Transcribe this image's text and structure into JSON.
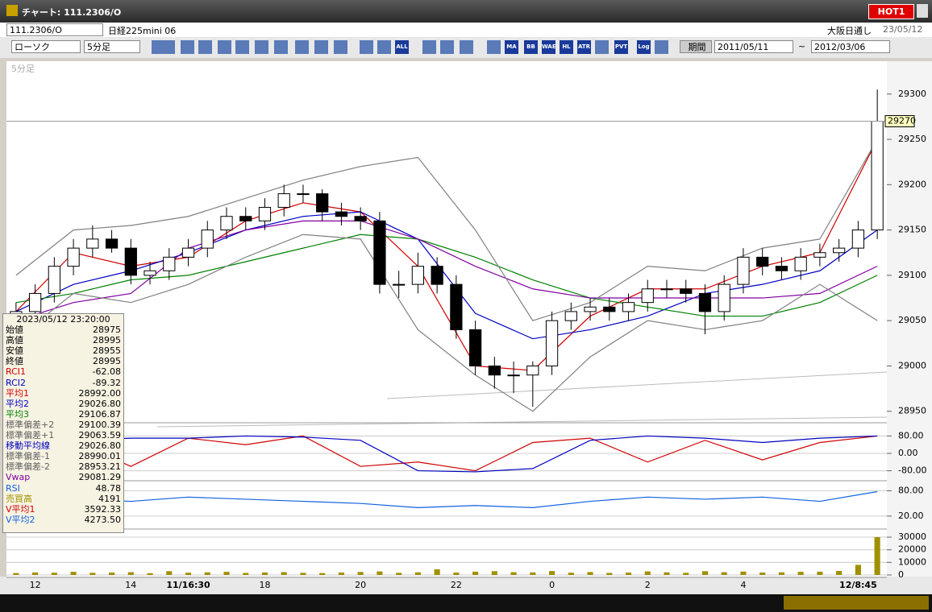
{
  "window": {
    "title": "チャート: 111.2306/O",
    "badge": "HOT1"
  },
  "toolbar": {
    "symbol": "111.2306/O",
    "name": "日経225mini 06",
    "market": "大阪日通し",
    "date": "23/05/12",
    "chart_style": "ローソク",
    "interval": "5分足",
    "period_button": "期間",
    "from": "2011/05/11",
    "tilde": "~",
    "to": "2012/03/06",
    "icons": [
      "ALL",
      "MA",
      "BB",
      "WAE",
      "HL",
      "ATR",
      "PVT",
      "Log"
    ]
  },
  "info_panel": {
    "timestamp": "2023/05/12 23:20:00",
    "rows": [
      {
        "label": "始値",
        "value": "28975",
        "color": "#000"
      },
      {
        "label": "高値",
        "value": "28995",
        "color": "#000"
      },
      {
        "label": "安値",
        "value": "28955",
        "color": "#000"
      },
      {
        "label": "終値",
        "value": "28995",
        "color": "#000"
      },
      {
        "label": "RCI1",
        "value": "-62.08",
        "color": "#d00000"
      },
      {
        "label": "RCI2",
        "value": "-89.32",
        "color": "#0000c0"
      },
      {
        "label": "平均1",
        "value": "28992.00",
        "color": "#d00000"
      },
      {
        "label": "平均2",
        "value": "29026.80",
        "color": "#0000c0"
      },
      {
        "label": "平均3",
        "value": "29106.87",
        "color": "#008000"
      },
      {
        "label": "標準偏差+2",
        "value": "29100.39",
        "color": "#606060"
      },
      {
        "label": "標準偏差+1",
        "value": "29063.59",
        "color": "#606060"
      },
      {
        "label": "移動平均線",
        "value": "29026.80",
        "color": "#0000c0"
      },
      {
        "label": "標準偏差-1",
        "value": "28990.01",
        "color": "#606060"
      },
      {
        "label": "標準偏差-2",
        "value": "28953.21",
        "color": "#606060"
      },
      {
        "label": "Vwap",
        "value": "29081.29",
        "color": "#8000a0"
      },
      {
        "label": "RSI",
        "value": "48.78",
        "color": "#1060e0"
      },
      {
        "label": "売買高",
        "value": "4191",
        "color": "#a09000"
      },
      {
        "label": "V平均1",
        "value": "3592.33",
        "color": "#d00000"
      },
      {
        "label": "V平均2",
        "value": "4273.50",
        "color": "#1060e0"
      }
    ]
  },
  "chart_data": [
    {
      "type": "candlestick",
      "subtitle": "5分足",
      "categories": [
        null,
        "12",
        null,
        null,
        null,
        null,
        "14",
        null,
        null,
        "11/16:30",
        null,
        null,
        null,
        "18",
        null,
        null,
        null,
        null,
        "20",
        null,
        null,
        null,
        null,
        "22",
        null,
        null,
        null,
        null,
        "0",
        null,
        null,
        null,
        null,
        "2",
        null,
        null,
        null,
        null,
        "4",
        null,
        null,
        null,
        null,
        null,
        "12/8:45",
        null
      ],
      "open": [
        29050,
        29060,
        29080,
        29110,
        29130,
        29140,
        29130,
        29100,
        29105,
        29120,
        29130,
        29150,
        29165,
        29160,
        29175,
        29190,
        29190,
        29170,
        29165,
        29160,
        29090,
        29090,
        29110,
        29090,
        29040,
        29000,
        28990,
        28990,
        29000,
        29050,
        29060,
        29065,
        29060,
        29070,
        29085,
        29085,
        29080,
        29060,
        29090,
        29120,
        29110,
        29105,
        29120,
        29125,
        29130,
        29150
      ],
      "high": [
        29070,
        29090,
        29120,
        29140,
        29155,
        29150,
        29140,
        29115,
        29130,
        29140,
        29160,
        29175,
        29175,
        29185,
        29200,
        29200,
        29195,
        29180,
        29175,
        29170,
        29105,
        29125,
        29120,
        29100,
        29050,
        29010,
        29005,
        29005,
        29060,
        29070,
        29075,
        29075,
        29080,
        29095,
        29095,
        29095,
        29090,
        29100,
        29130,
        29130,
        29120,
        29130,
        29135,
        29140,
        29160,
        29305
      ],
      "low": [
        29040,
        29050,
        29070,
        29100,
        29120,
        29125,
        29090,
        29090,
        29095,
        29110,
        29120,
        29140,
        29150,
        29150,
        29165,
        29180,
        29160,
        29155,
        29150,
        29080,
        29075,
        29080,
        29080,
        29030,
        28990,
        28975,
        28970,
        28955,
        28990,
        29040,
        29050,
        29050,
        29050,
        29060,
        29075,
        29070,
        29035,
        29050,
        29080,
        29100,
        29095,
        29095,
        29110,
        29115,
        29120,
        29140
      ],
      "close": [
        29060,
        29080,
        29110,
        29130,
        29140,
        29130,
        29100,
        29105,
        29120,
        29130,
        29150,
        29165,
        29160,
        29175,
        29190,
        29190,
        29170,
        29165,
        29160,
        29090,
        29090,
        29110,
        29090,
        29040,
        29000,
        28990,
        28990,
        29000,
        29050,
        29060,
        29065,
        29060,
        29070,
        29085,
        29085,
        29080,
        29060,
        29090,
        29120,
        29110,
        29105,
        29120,
        29125,
        29130,
        29150,
        29270
      ],
      "overlays": [
        {
          "color": "#d00000",
          "x": [
            0,
            3,
            6,
            9,
            12,
            15,
            18,
            21,
            24,
            27,
            30,
            33,
            36,
            39,
            42,
            45
          ],
          "values": [
            29060,
            29125,
            29110,
            29120,
            29160,
            29180,
            29170,
            29110,
            29000,
            28995,
            29055,
            29085,
            29085,
            29110,
            29125,
            29250
          ]
        },
        {
          "color": "#0000c0",
          "x": [
            0,
            3,
            6,
            9,
            12,
            15,
            18,
            21,
            24,
            27,
            30,
            33,
            36,
            39,
            42,
            45
          ],
          "values": [
            29060,
            29090,
            29105,
            29125,
            29150,
            29165,
            29170,
            29140,
            29058,
            29030,
            29040,
            29055,
            29080,
            29090,
            29105,
            29150
          ]
        },
        {
          "color": "#008000",
          "x": [
            0,
            3,
            6,
            9,
            12,
            15,
            18,
            21,
            24,
            27,
            30,
            33,
            36,
            39,
            42,
            45
          ],
          "values": [
            29070,
            29080,
            29095,
            29100,
            29115,
            29130,
            29145,
            29140,
            29120,
            29095,
            29075,
            29065,
            29055,
            29055,
            29070,
            29100
          ]
        },
        {
          "color": "#8000a0",
          "x": [
            0,
            3,
            6,
            9,
            12,
            15,
            18,
            21,
            24,
            27,
            30,
            33,
            36,
            39,
            42,
            45
          ],
          "values": [
            29050,
            29070,
            29080,
            29130,
            29150,
            29160,
            29160,
            29140,
            29110,
            29085,
            29075,
            29075,
            29075,
            29075,
            29080,
            29110
          ]
        },
        {
          "color": "#808080",
          "x": [
            0,
            3,
            6,
            9,
            12,
            15,
            18,
            21,
            24,
            27,
            30,
            33,
            36,
            39,
            42,
            45
          ],
          "values": [
            29100,
            29150,
            29155,
            29165,
            29185,
            29205,
            29220,
            29230,
            29150,
            29050,
            29070,
            29110,
            29105,
            29130,
            29140,
            29250
          ]
        },
        {
          "color": "#808080",
          "x": [
            0,
            3,
            6,
            9,
            12,
            15,
            18,
            21,
            24,
            27,
            30,
            33,
            36,
            39,
            42,
            45
          ],
          "values": [
            29030,
            29080,
            29070,
            29090,
            29120,
            29145,
            29140,
            29040,
            28990,
            28950,
            29010,
            29050,
            29040,
            29050,
            29090,
            29050
          ]
        }
      ],
      "ylim": [
        28940,
        29322
      ],
      "yticks": [
        28950,
        29000,
        29050,
        29100,
        29150,
        29200,
        29250,
        29300
      ],
      "last_price": 29270,
      "up_color": "#ffffff",
      "down_color": "#000000"
    },
    {
      "type": "line",
      "ylim": [
        -115,
        115
      ],
      "yticks": [
        {
          "value": 80,
          "label": "80.00"
        },
        {
          "value": 0,
          "label": "0.00"
        },
        {
          "value": -80,
          "label": "-80.00"
        }
      ],
      "series": [
        {
          "color": "#d00000",
          "x": [
            0,
            3,
            6,
            9,
            12,
            15,
            18,
            21,
            24,
            27,
            30,
            33,
            36,
            39,
            42,
            45
          ],
          "values": [
            -20,
            60,
            -60,
            70,
            40,
            80,
            -60,
            -40,
            -80,
            50,
            70,
            -40,
            60,
            -30,
            50,
            80
          ]
        },
        {
          "color": "#0000c0",
          "x": [
            0,
            3,
            6,
            9,
            12,
            15,
            18,
            21,
            24,
            27,
            30,
            33,
            36,
            39,
            42,
            45
          ],
          "values": [
            -40,
            60,
            70,
            70,
            80,
            75,
            60,
            -80,
            -85,
            -70,
            60,
            80,
            70,
            50,
            70,
            80
          ]
        }
      ]
    },
    {
      "type": "line",
      "ylim": [
        -5,
        98
      ],
      "yticks": [
        {
          "value": 80,
          "label": "80.00"
        },
        {
          "value": 20,
          "label": "20.00"
        }
      ],
      "series": [
        {
          "color": "#1060e0",
          "x": [
            0,
            3,
            6,
            9,
            12,
            15,
            18,
            21,
            24,
            27,
            30,
            33,
            36,
            39,
            42,
            45
          ],
          "values": [
            45,
            60,
            55,
            65,
            60,
            55,
            50,
            40,
            45,
            40,
            55,
            65,
            60,
            65,
            55,
            78
          ]
        }
      ]
    },
    {
      "type": "bar",
      "color": "#a09000",
      "ylim": [
        0,
        34500
      ],
      "yticks": [
        0,
        10000,
        20000,
        30000
      ],
      "values": [
        1500,
        2000,
        1800,
        2500,
        1700,
        1900,
        2200,
        1400,
        3000,
        1800,
        2100,
        2500,
        1600,
        2000,
        2300,
        1700,
        1500,
        1900,
        2400,
        2800,
        1700,
        2100,
        4500,
        1900,
        2600,
        3000,
        2200,
        2000,
        3100,
        1800,
        2300,
        1600,
        1900,
        2800,
        2100,
        1700,
        3000,
        2200,
        2700,
        1900,
        2100,
        2500,
        2600,
        3200,
        8000,
        30000
      ]
    }
  ]
}
